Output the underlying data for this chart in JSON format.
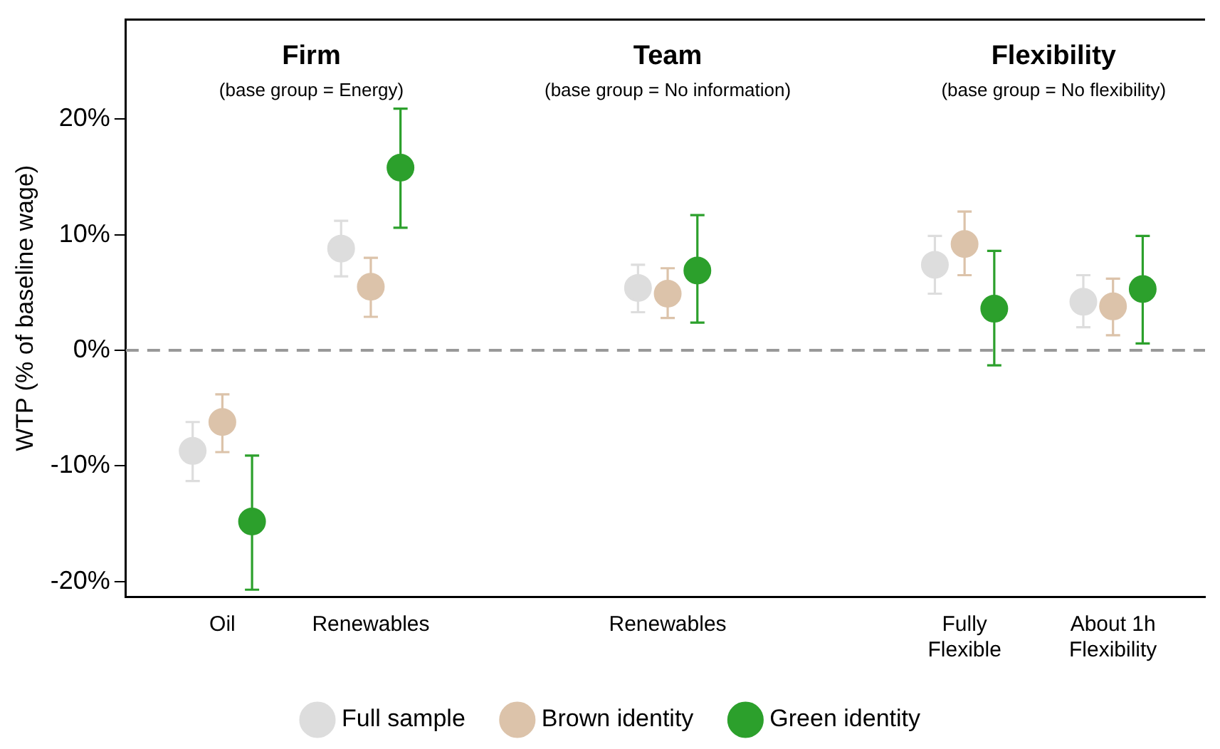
{
  "chart_data": {
    "type": "scatter",
    "ylabel": "WTP (% of baseline wage)",
    "categories": [
      "Oil",
      "Renewables",
      null,
      "Renewables",
      null,
      "Fully Flexible",
      "About 1h Flexibility"
    ],
    "ylim": [
      -21.3,
      28.6
    ],
    "yticks": [
      {
        "value": -20,
        "label": "-20%"
      },
      {
        "value": -10,
        "label": "-10%"
      },
      {
        "value": 0,
        "label": "0%"
      },
      {
        "value": 10,
        "label": "10%"
      },
      {
        "value": 20,
        "label": "20%"
      }
    ],
    "series": [
      {
        "name": "Full sample",
        "color": "#dddddd",
        "values": [
          -8.7,
          8.8,
          null,
          5.4,
          null,
          7.4,
          4.2
        ],
        "errors": [
          [
            -11.3,
            -6.2
          ],
          [
            6.4,
            11.2
          ],
          null,
          [
            3.3,
            7.4
          ],
          null,
          [
            4.9,
            9.9
          ],
          [
            2.0,
            6.5
          ]
        ]
      },
      {
        "name": "Brown identity",
        "color": "#dcc3aa",
        "values": [
          -6.2,
          5.5,
          null,
          4.9,
          null,
          9.2,
          3.8
        ],
        "errors": [
          [
            -8.8,
            -3.8
          ],
          [
            2.9,
            8.0
          ],
          null,
          [
            2.8,
            7.1
          ],
          null,
          [
            6.5,
            12.0
          ],
          [
            1.3,
            6.2
          ]
        ]
      },
      {
        "name": "Green identity",
        "color": "#2ca02c",
        "values": [
          -14.8,
          15.8,
          null,
          6.9,
          null,
          3.6,
          5.3
        ],
        "errors": [
          [
            -20.7,
            -9.1
          ],
          [
            10.6,
            20.9
          ],
          null,
          [
            2.4,
            11.7
          ],
          null,
          [
            -1.3,
            8.6
          ],
          [
            0.6,
            9.9
          ]
        ]
      }
    ],
    "ref_lines": [
      {
        "axis": "y",
        "value": 0,
        "color": "#999999",
        "line_style": "dashed"
      }
    ],
    "annotations": [
      "Firm",
      "(base group = Energy)",
      "Team",
      "(base group = No information)",
      "Flexibility",
      "(base group = No flexibility)"
    ],
    "grid": false,
    "legend": "bottom",
    "marker": "circle"
  }
}
